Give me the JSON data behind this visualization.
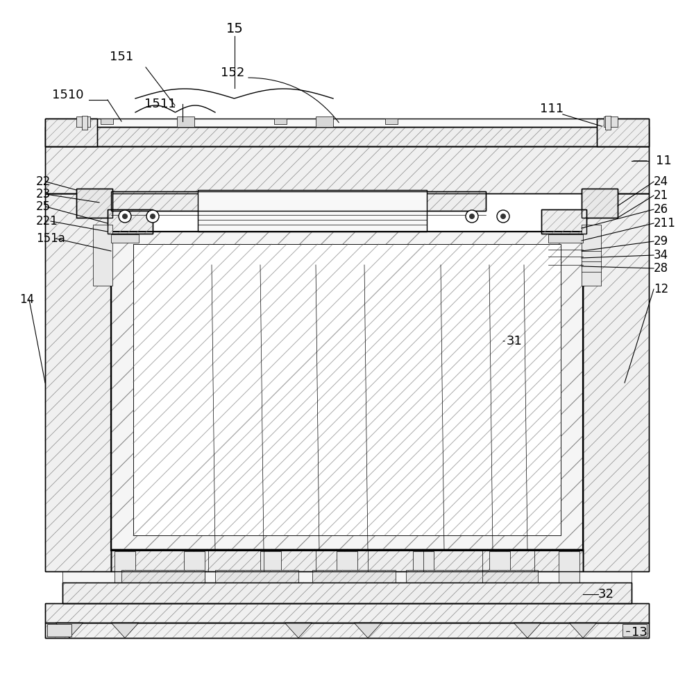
{
  "bg_color": "#ffffff",
  "lc": "#000000",
  "fig_w": 10.0,
  "fig_h": 9.72,
  "dpi": 100,
  "hatch_color": "#888888",
  "hatch_lw": 0.5,
  "main_lw": 1.0,
  "thick_lw": 1.5,
  "thin_lw": 0.5,
  "label_fs": 13
}
